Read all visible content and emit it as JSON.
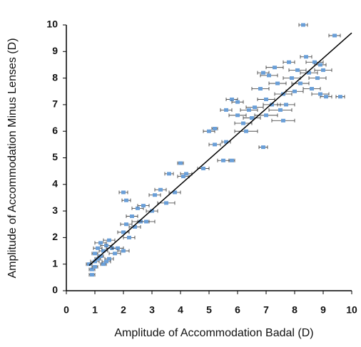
{
  "chart_data": {
    "type": "scatter",
    "xlabel": "Amplitude of Accommodation Badal (D)",
    "ylabel": "Amplitude of Accommodation Minus Lenses (D)",
    "xlim": [
      0,
      10
    ],
    "ylim": [
      0,
      10
    ],
    "xticks": [
      0,
      1,
      2,
      3,
      4,
      5,
      6,
      7,
      8,
      9,
      10
    ],
    "yticks": [
      0,
      1,
      2,
      3,
      4,
      5,
      6,
      7,
      8,
      9,
      10
    ],
    "grid": false,
    "series": [
      {
        "color": "#6a9fd8",
        "x": [
          0.9,
          0.9,
          0.8,
          1.0,
          1.0,
          1.1,
          1.2,
          1.0,
          1.3,
          1.4,
          1.2,
          1.5,
          1.6,
          1.3,
          1.5,
          1.7,
          1.8,
          2.0,
          1.1,
          1.4,
          2.0,
          2.1,
          2.3,
          2.4,
          2.5,
          2.6,
          2.7,
          2.0,
          2.1,
          2.2,
          2.8,
          3.0,
          3.1,
          3.3,
          3.5,
          3.6,
          3.8,
          4.0,
          4.1,
          4.2,
          4.8,
          5.0,
          5.2,
          5.2,
          5.5,
          5.6,
          5.8,
          5.6,
          5.8,
          6.0,
          6.0,
          6.2,
          6.3,
          6.4,
          6.5,
          6.6,
          6.8,
          6.9,
          6.9,
          7.0,
          7.0,
          7.1,
          7.2,
          7.3,
          7.4,
          7.5,
          7.6,
          7.7,
          7.8,
          7.9,
          8.0,
          8.1,
          8.2,
          8.3,
          8.4,
          8.5,
          8.6,
          8.7,
          8.8,
          8.9,
          9.0,
          9.1,
          9.4,
          9.6,
          8.9,
          7.6
        ],
        "y": [
          0.6,
          0.8,
          1.0,
          0.9,
          1.1,
          1.2,
          1.3,
          1.4,
          1.5,
          1.7,
          1.8,
          1.9,
          1.6,
          1.0,
          1.2,
          1.4,
          1.6,
          1.5,
          1.6,
          1.1,
          2.2,
          2.5,
          2.8,
          2.4,
          3.1,
          2.6,
          3.2,
          3.7,
          3.4,
          2.0,
          2.6,
          3.0,
          3.6,
          3.8,
          3.3,
          4.4,
          3.7,
          4.8,
          4.3,
          4.4,
          4.6,
          6.0,
          6.1,
          5.5,
          4.9,
          5.6,
          4.9,
          6.8,
          7.2,
          7.1,
          6.6,
          6.3,
          6.0,
          6.8,
          6.5,
          6.9,
          7.6,
          8.2,
          5.4,
          6.6,
          7.2,
          8.1,
          7.0,
          8.4,
          7.8,
          6.8,
          7.4,
          7.0,
          8.6,
          8.0,
          7.5,
          8.3,
          7.8,
          10.0,
          8.8,
          8.2,
          7.6,
          8.6,
          8.0,
          8.5,
          8.3,
          7.3,
          9.6,
          7.3,
          7.4,
          6.4
        ],
        "xerr": [
          0.1,
          0.1,
          0.1,
          0.1,
          0.15,
          0.1,
          0.1,
          0.1,
          0.15,
          0.2,
          0.2,
          0.2,
          0.2,
          0.1,
          0.15,
          0.2,
          0.2,
          0.2,
          0.15,
          0.15,
          0.2,
          0.2,
          0.2,
          0.2,
          0.2,
          0.3,
          0.2,
          0.15,
          0.15,
          0.2,
          0.3,
          0.2,
          0.2,
          0.2,
          0.3,
          0.15,
          0.2,
          0.1,
          0.2,
          0.2,
          0.2,
          0.2,
          0.1,
          0.2,
          0.2,
          0.15,
          0.1,
          0.2,
          0.2,
          0.2,
          0.3,
          0.3,
          0.4,
          0.3,
          0.3,
          0.3,
          0.3,
          0.2,
          0.15,
          0.4,
          0.3,
          0.3,
          0.3,
          0.3,
          0.3,
          0.4,
          0.3,
          0.3,
          0.2,
          0.3,
          0.3,
          0.3,
          0.3,
          0.15,
          0.2,
          0.3,
          0.3,
          0.3,
          0.3,
          0.2,
          0.3,
          0.2,
          0.2,
          0.15,
          0.3,
          0.4
        ]
      }
    ],
    "fit_line": {
      "x": [
        0.8,
        10
      ],
      "y": [
        0.95,
        9.7
      ]
    }
  }
}
